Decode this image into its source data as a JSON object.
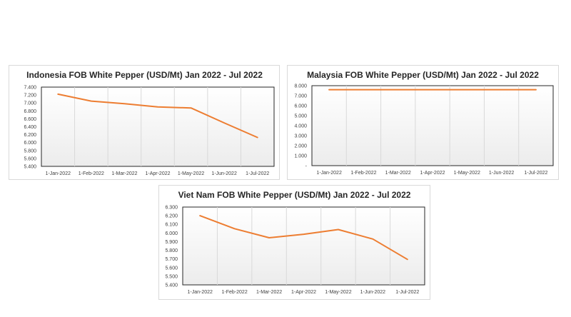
{
  "chart_data": [
    {
      "type": "line",
      "title": "Indonesia FOB White Pepper (USD/Mt) Jan 2022 - Jul 2022",
      "categories": [
        "1-Jan-2022",
        "1-Feb-2022",
        "1-Mar-2022",
        "1-Apr-2022",
        "1-May-2022",
        "1-Jun-2022",
        "1-Jul-2022"
      ],
      "series": [
        {
          "values": [
            7222,
            7047,
            6982,
            6899,
            6874,
            6498,
            6130
          ]
        }
      ],
      "yticks": [
        "7.400",
        "7.200",
        "7.000",
        "6.800",
        "6.600",
        "6.400",
        "6.200",
        "6.000",
        "5.800",
        "5.600",
        "5.400"
      ],
      "ylim": [
        5400,
        7400
      ],
      "xlabel": "",
      "ylabel": "",
      "grid": "vertical",
      "color": "#ED7D31"
    },
    {
      "type": "line",
      "title": "Malaysia FOB White Pepper (USD/Mt) Jan 2022 - Jul 2022",
      "categories": [
        "1-Jan-2022",
        "1-Feb-2022",
        "1-Mar-2022",
        "1-Apr-2022",
        "1-May-2022",
        "1-Jun-2022",
        "1-Jul-2022"
      ],
      "series": [
        {
          "values": [
            7600,
            7600,
            7600,
            7600,
            7600,
            7600,
            7600
          ]
        }
      ],
      "yticks": [
        "8.000",
        "7.000",
        "6.000",
        "5.000",
        "4.000",
        "3.000",
        "2.000",
        "1.000",
        "-"
      ],
      "ylim": [
        0,
        8000
      ],
      "xlabel": "",
      "ylabel": "",
      "grid": "vertical",
      "color": "#ED7D31"
    },
    {
      "type": "line",
      "title": "Viet Nam FOB White Pepper (USD/Mt) Jan 2022 - Jul 2022",
      "categories": [
        "1-Jan-2022",
        "1-Feb-2022",
        "1-Mar-2022",
        "1-Apr-2022",
        "1-May-2022",
        "1-Jun-2022",
        "1-Jul-2022"
      ],
      "series": [
        {
          "values": [
            6200,
            6050,
            5945,
            5985,
            6040,
            5930,
            5695
          ]
        }
      ],
      "yticks": [
        "6.300",
        "6.200",
        "6.100",
        "6.000",
        "5.900",
        "5.800",
        "5.700",
        "5.600",
        "5.500",
        "5.400"
      ],
      "ylim": [
        5400,
        6300
      ],
      "xlabel": "",
      "ylabel": "",
      "grid": "vertical",
      "color": "#ED7D31"
    }
  ]
}
